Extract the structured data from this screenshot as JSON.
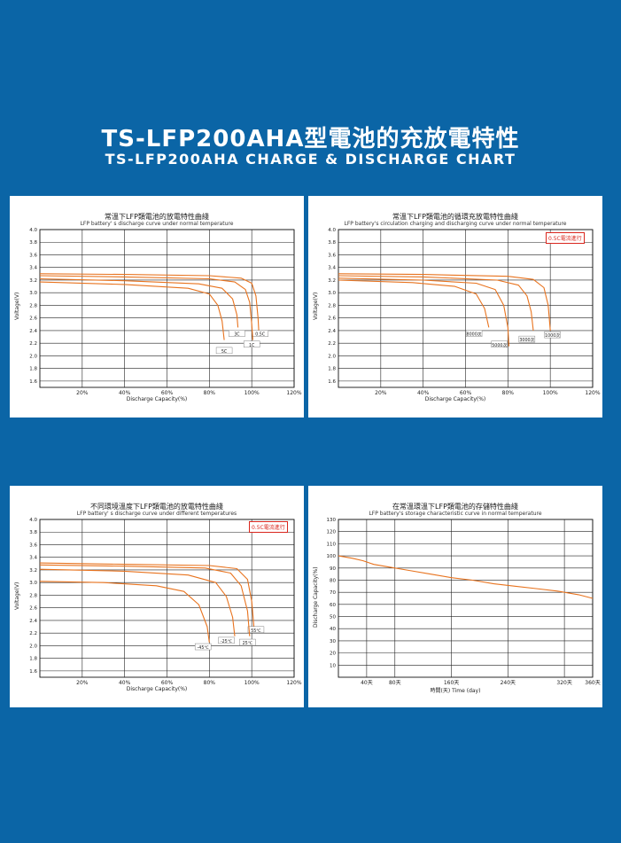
{
  "header": {
    "title_cn": "TS-LFP200AHA型電池的充放電特性",
    "title_en": "TS-LFP200AHA CHARGE & DISCHARGE CHART"
  },
  "colors": {
    "background": "#0b65a6",
    "curve": "#e8731e",
    "badge": "#d9251c"
  },
  "chart_data": [
    {
      "type": "line",
      "title": "常溫下LFP類電池的放電特性曲綫",
      "subtitle": "LFP battery' s discharge curve under normal temperature",
      "xlabel": "Discharge Capacity(%)",
      "ylabel": "Voltage(V)",
      "xlim": [
        0,
        120
      ],
      "ylim": [
        1.5,
        4.0
      ],
      "x_ticks": [
        20,
        40,
        60,
        80,
        100,
        120
      ],
      "x_tick_labels": [
        "20%",
        "40%",
        "60%",
        "80%",
        "100%",
        "120%"
      ],
      "y_ticks": [
        1.6,
        1.8,
        2.0,
        2.2,
        2.4,
        2.6,
        2.8,
        3.0,
        3.2,
        3.4,
        3.6,
        3.8,
        4.0
      ],
      "y_tick_labels": [
        "1.6",
        "1.8",
        "2.0",
        "2.2",
        "2.4",
        "2.6",
        "2.8",
        "3.0",
        "3.2",
        "3.4",
        "3.6",
        "3.8",
        "4.0"
      ],
      "grid": true,
      "badge": "",
      "series": [
        {
          "name": "0.5C",
          "label_at": [
            104,
            2.34
          ],
          "points": [
            [
              0,
              3.3
            ],
            [
              40,
              3.29
            ],
            [
              80,
              3.27
            ],
            [
              95,
              3.23
            ],
            [
              100,
              3.15
            ],
            [
              102,
              2.95
            ],
            [
              103,
              2.6
            ],
            [
              103.5,
              2.3
            ]
          ]
        },
        {
          "name": "1C",
          "label_at": [
            100,
            2.17
          ],
          "points": [
            [
              0,
              3.27
            ],
            [
              40,
              3.25
            ],
            [
              80,
              3.22
            ],
            [
              92,
              3.17
            ],
            [
              97,
              3.05
            ],
            [
              99,
              2.85
            ],
            [
              100,
              2.5
            ],
            [
              100.5,
              2.25
            ]
          ]
        },
        {
          "name": "3C",
          "label_at": [
            93,
            2.34
          ],
          "points": [
            [
              0,
              3.22
            ],
            [
              40,
              3.19
            ],
            [
              75,
              3.14
            ],
            [
              86,
              3.07
            ],
            [
              91,
              2.9
            ],
            [
              93,
              2.65
            ],
            [
              93.5,
              2.45
            ]
          ]
        },
        {
          "name": "5C",
          "label_at": [
            87,
            2.07
          ],
          "points": [
            [
              0,
              3.17
            ],
            [
              40,
              3.13
            ],
            [
              70,
              3.07
            ],
            [
              80,
              2.98
            ],
            [
              84,
              2.8
            ],
            [
              86,
              2.55
            ],
            [
              87,
              2.25
            ]
          ]
        }
      ]
    },
    {
      "type": "line",
      "title": "常溫下LFP類電池的循環充放電特性曲綫",
      "subtitle": "LFP battery's circulation charging and discharging curve under normal temperature",
      "xlabel": "Discharge Capacity(%)",
      "ylabel": "Voltage(V)",
      "xlim": [
        0,
        120
      ],
      "ylim": [
        1.5,
        4.0
      ],
      "x_ticks": [
        20,
        40,
        60,
        80,
        100,
        120
      ],
      "x_tick_labels": [
        "20%",
        "40%",
        "60%",
        "80%",
        "100%",
        "120%"
      ],
      "y_ticks": [
        1.6,
        1.8,
        2.0,
        2.2,
        2.4,
        2.6,
        2.8,
        3.0,
        3.2,
        3.4,
        3.6,
        3.8,
        4.0
      ],
      "y_tick_labels": [
        "1.6",
        "1.8",
        "2.0",
        "2.2",
        "2.4",
        "2.6",
        "2.8",
        "3.0",
        "3.2",
        "3.4",
        "3.6",
        "3.8",
        "4.0"
      ],
      "grid": true,
      "badge": "0.5C電流進行",
      "series": [
        {
          "name": "1000次",
          "label_at": [
            101,
            2.32
          ],
          "points": [
            [
              0,
              3.3
            ],
            [
              40,
              3.29
            ],
            [
              80,
              3.26
            ],
            [
              92,
              3.21
            ],
            [
              97,
              3.08
            ],
            [
              99,
              2.8
            ],
            [
              100,
              2.4
            ]
          ]
        },
        {
          "name": "3000次",
          "label_at": [
            89,
            2.25
          ],
          "points": [
            [
              0,
              3.27
            ],
            [
              40,
              3.25
            ],
            [
              75,
              3.2
            ],
            [
              85,
              3.12
            ],
            [
              89,
              2.95
            ],
            [
              91,
              2.7
            ],
            [
              92,
              2.4
            ]
          ]
        },
        {
          "name": "5000次",
          "label_at": [
            76,
            2.17
          ],
          "points": [
            [
              0,
              3.23
            ],
            [
              40,
              3.2
            ],
            [
              65,
              3.15
            ],
            [
              74,
              3.05
            ],
            [
              78,
              2.8
            ],
            [
              80,
              2.45
            ],
            [
              80.5,
              2.15
            ]
          ]
        },
        {
          "name": "8000次",
          "label_at": [
            64,
            2.34
          ],
          "points": [
            [
              0,
              3.2
            ],
            [
              35,
              3.16
            ],
            [
              55,
              3.1
            ],
            [
              65,
              2.98
            ],
            [
              69,
              2.75
            ],
            [
              71,
              2.45
            ]
          ]
        }
      ]
    },
    {
      "type": "line",
      "title": "不同環境溫度下LFP類電池的放電特性曲綫",
      "subtitle": "LFP battery' s discharge curve under different temperatures",
      "xlabel": "Discharge Capacity(%)",
      "ylabel": "Voltage(V)",
      "xlim": [
        0,
        120
      ],
      "ylim": [
        1.5,
        4.0
      ],
      "x_ticks": [
        20,
        40,
        60,
        80,
        100,
        120
      ],
      "x_tick_labels": [
        "20%",
        "40%",
        "60%",
        "80%",
        "100%",
        "120%"
      ],
      "y_ticks": [
        1.6,
        1.8,
        2.0,
        2.2,
        2.4,
        2.6,
        2.8,
        3.0,
        3.2,
        3.4,
        3.6,
        3.8,
        4.0
      ],
      "y_tick_labels": [
        "1.6",
        "1.8",
        "2.0",
        "2.2",
        "2.4",
        "2.6",
        "2.8",
        "3.0",
        "3.2",
        "3.4",
        "3.6",
        "3.8",
        "4.0"
      ],
      "grid": true,
      "badge": "0.5C電流進行",
      "series": [
        {
          "name": "55℃",
          "label_at": [
            102,
            2.24
          ],
          "points": [
            [
              0,
              3.31
            ],
            [
              40,
              3.29
            ],
            [
              80,
              3.27
            ],
            [
              93,
              3.22
            ],
            [
              98,
              3.05
            ],
            [
              100,
              2.7
            ],
            [
              101,
              2.3
            ]
          ]
        },
        {
          "name": "25℃",
          "label_at": [
            98,
            2.04
          ],
          "points": [
            [
              0,
              3.28
            ],
            [
              40,
              3.26
            ],
            [
              78,
              3.23
            ],
            [
              90,
              3.15
            ],
            [
              95,
              2.95
            ],
            [
              98,
              2.55
            ],
            [
              99,
              2.15
            ]
          ]
        },
        {
          "name": "-25℃",
          "label_at": [
            88,
            2.07
          ],
          "points": [
            [
              0,
              3.21
            ],
            [
              40,
              3.18
            ],
            [
              70,
              3.12
            ],
            [
              83,
              3.0
            ],
            [
              88,
              2.78
            ],
            [
              91,
              2.45
            ],
            [
              92,
              2.15
            ]
          ]
        },
        {
          "name": "-45℃",
          "label_at": [
            77,
            1.97
          ],
          "points": [
            [
              0,
              3.02
            ],
            [
              30,
              3.0
            ],
            [
              55,
              2.95
            ],
            [
              68,
              2.86
            ],
            [
              75,
              2.65
            ],
            [
              79,
              2.3
            ],
            [
              80,
              2.05
            ]
          ]
        }
      ]
    },
    {
      "type": "line",
      "title": "在常溫環溫下LFP類電池的存儲特性曲綫",
      "subtitle": "LFP battery's storage characteristic curve in normal temperature",
      "xlabel": "時間(天) Time (day)",
      "ylabel": "Discharge Capacity(%)",
      "xlim": [
        0,
        360
      ],
      "ylim": [
        0,
        130
      ],
      "x_ticks": [
        40,
        80,
        160,
        240,
        320,
        360
      ],
      "x_tick_labels": [
        "40天",
        "80天",
        "160天",
        "240天",
        "320天",
        "360天"
      ],
      "y_ticks": [
        10,
        20,
        30,
        40,
        50,
        60,
        70,
        80,
        90,
        100,
        110,
        120,
        130
      ],
      "y_tick_labels": [
        "10",
        "20",
        "30",
        "40",
        "50",
        "60",
        "70",
        "80",
        "90",
        "100",
        "110",
        "120",
        "130"
      ],
      "grid": true,
      "badge": "",
      "series": [
        {
          "name": "",
          "label_at": null,
          "points": [
            [
              0,
              100
            ],
            [
              20,
              98
            ],
            [
              35,
              96
            ],
            [
              50,
              93
            ],
            [
              70,
              91
            ],
            [
              100,
              88
            ],
            [
              130,
              85
            ],
            [
              160,
              82
            ],
            [
              190,
              80
            ],
            [
              220,
              77
            ],
            [
              250,
              75
            ],
            [
              280,
              73
            ],
            [
              310,
              71
            ],
            [
              340,
              68
            ],
            [
              360,
              65
            ]
          ]
        }
      ]
    }
  ]
}
